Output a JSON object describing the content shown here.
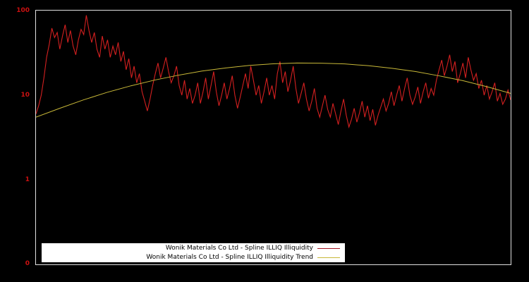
{
  "figure": {
    "background": "#000000",
    "axis_color": "#e0e0e0",
    "tick_color": "#cc1111"
  },
  "y_axis": {
    "ticks": [
      {
        "label": "100",
        "value": 100
      },
      {
        "label": "10",
        "value": 10
      },
      {
        "label": "1",
        "value": 1
      },
      {
        "label": "0",
        "value": 0.1
      }
    ]
  },
  "legend": {
    "entries": [
      {
        "label": "Wonik Materials Co Ltd - Spline ILLIQ Illiquidity",
        "color": "#a51422"
      },
      {
        "label": "Wonik Materials Co Ltd - Spline ILLIQ Illiquidity Trend",
        "color": "#c8b838"
      }
    ]
  },
  "chart_data": {
    "type": "line",
    "title": "",
    "xlabel": "",
    "ylabel": "",
    "y_scale": "log",
    "ylim": [
      0.1,
      100
    ],
    "y_ticks": [
      "100",
      "10",
      "1",
      "0"
    ],
    "x_tick_labels": [],
    "grid": false,
    "legend_position": "bottom-left",
    "series": [
      {
        "name": "Wonik Materials Co Ltd - Spline ILLIQ Illiquidity",
        "color": "#d42020",
        "values": [
          6.0,
          7.5,
          10,
          16,
          28,
          40,
          62,
          48,
          55,
          35,
          50,
          68,
          42,
          58,
          38,
          30,
          45,
          60,
          52,
          88,
          58,
          42,
          55,
          35,
          28,
          50,
          35,
          45,
          28,
          38,
          30,
          42,
          25,
          33,
          20,
          27,
          16,
          22,
          14,
          18,
          11,
          8.5,
          6.5,
          9,
          13,
          18,
          24,
          16,
          21,
          28,
          19,
          14,
          17,
          22,
          13,
          10,
          15,
          9,
          12,
          8,
          10,
          14,
          8,
          11,
          16,
          9,
          13,
          19,
          11,
          7.5,
          10,
          14,
          9,
          12,
          17,
          10,
          7,
          9.5,
          13,
          18,
          12,
          22,
          15,
          10,
          13,
          8,
          11,
          16,
          10,
          13,
          9,
          18,
          25,
          14,
          19,
          11,
          15,
          22,
          12,
          8,
          10.5,
          14,
          9,
          6.5,
          8.5,
          12,
          7,
          5.5,
          7.5,
          10,
          6.8,
          5.5,
          8,
          6,
          4.5,
          6.5,
          9,
          5.8,
          4.2,
          5.2,
          7,
          4.8,
          6.2,
          8.5,
          5.5,
          7.5,
          5,
          6.8,
          4.4,
          5.8,
          7.2,
          9,
          6.5,
          8,
          11,
          7.5,
          10,
          13,
          8.5,
          12,
          16,
          10,
          7.8,
          9.5,
          12.5,
          8,
          11,
          14,
          9.2,
          12,
          10,
          15,
          20,
          26,
          17,
          22,
          30,
          19,
          25,
          14,
          18,
          24,
          16,
          28,
          20,
          15,
          18,
          12,
          15,
          10,
          13,
          9,
          11,
          14,
          8.5,
          10.5,
          7.8,
          9,
          11.5,
          8.8
        ]
      },
      {
        "name": "Wonik Materials Co Ltd - Spline ILLIQ Illiquidity Trend",
        "color": "#c8b838",
        "values": [
          5.5,
          7.0,
          8.8,
          10.8,
          12.9,
          15.1,
          17.2,
          19.3,
          21.0,
          22.5,
          23.5,
          24.0,
          23.9,
          23.4,
          22.3,
          20.8,
          19.0,
          16.9,
          14.8,
          12.6,
          10.5
        ]
      }
    ]
  }
}
